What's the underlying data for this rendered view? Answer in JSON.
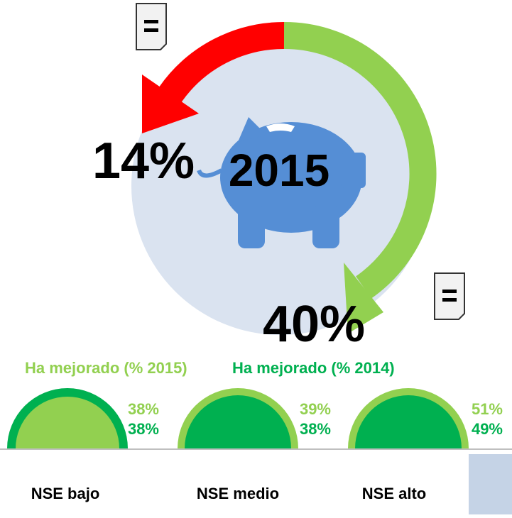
{
  "center_label": "2015",
  "worsened": {
    "value": "14%"
  },
  "improved": {
    "value": "40%"
  },
  "legend": [
    "Ha mejorado (% 2015)",
    "Ha mejorado (% 2014)"
  ],
  "groups": [
    {
      "label": "NSE bajo",
      "pct_2015": "38%",
      "pct_2014": "38%"
    },
    {
      "label": "NSE medio",
      "pct_2015": "39%",
      "pct_2014": "38%"
    },
    {
      "label": "NSE alto",
      "pct_2015": "51%",
      "pct_2014": "49%"
    }
  ]
}
